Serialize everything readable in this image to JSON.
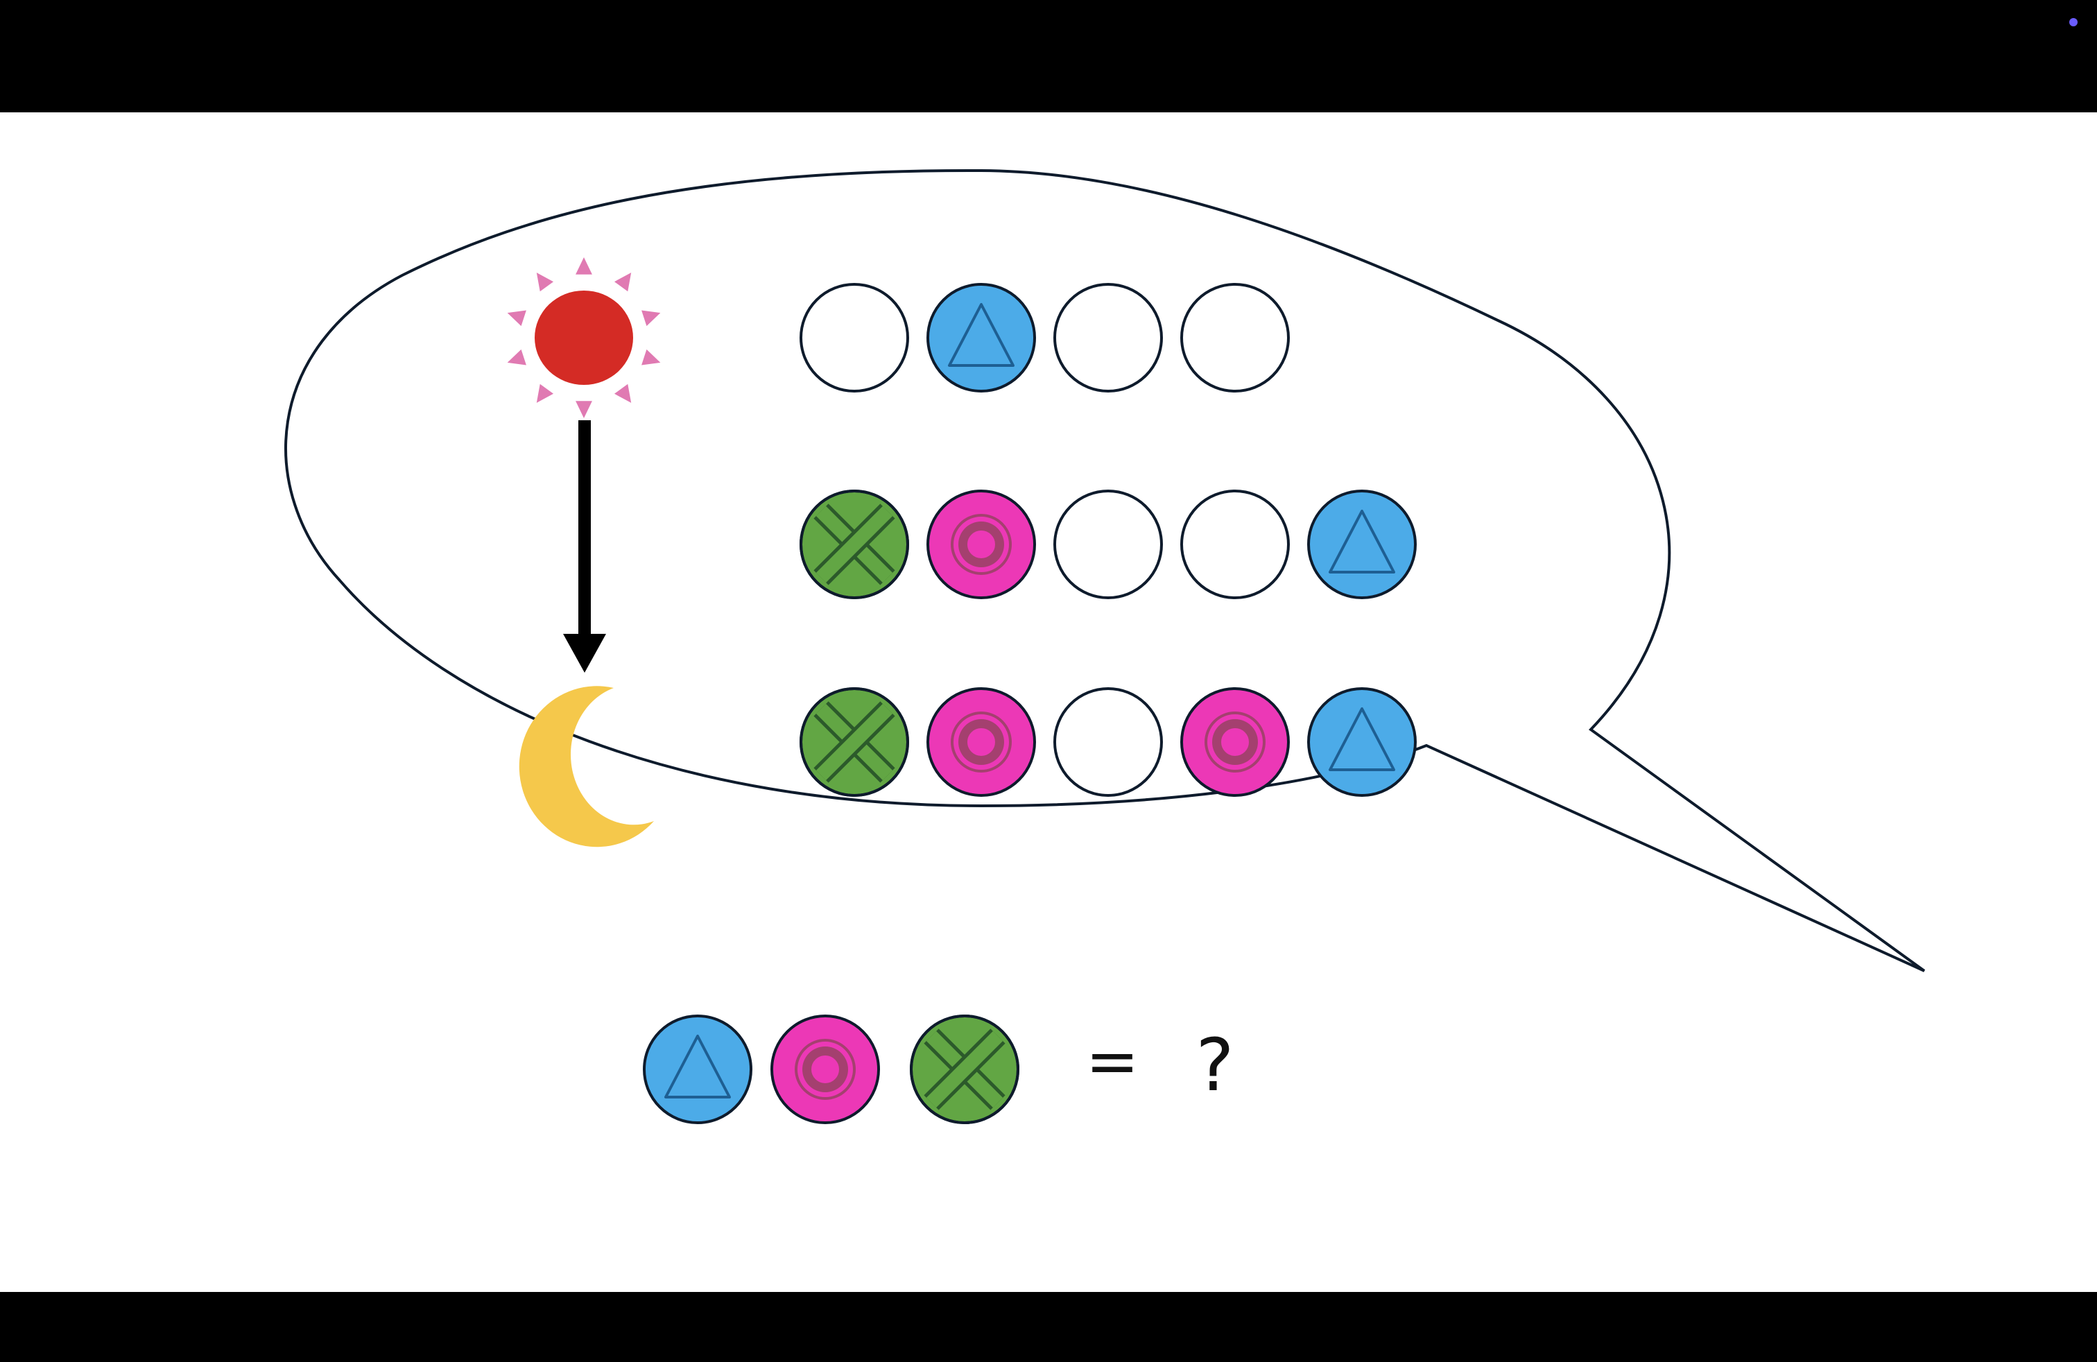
{
  "colors": {
    "letterbox": "#000000",
    "slide_background": "#ffffff",
    "status_dot": "#6a5cff",
    "outline": "#0e1b2c",
    "sun_core": "#d42b25",
    "sun_rays": "#e07ab2",
    "moon": "#f5c84b",
    "arrow": "#000000",
    "triangle_fill": "#4cabe8",
    "triangle_stroke": "#1e5f93",
    "target_fill": "#ec38b6",
    "target_stroke": "#a4406f",
    "cross_fill": "#62a644",
    "cross_stroke": "#2c5a2b",
    "empty_fill": "#ffffff"
  },
  "icons": {
    "sun": "sun-icon",
    "moon": "crescent-moon-icon",
    "arrow": "arrow-down-icon",
    "triangle": "triangle-token-icon",
    "target": "target-token-icon",
    "cross": "cross-token-icon",
    "empty": "empty-token-icon"
  },
  "puzzle": {
    "rows": [
      [
        "empty",
        "triangle",
        "empty",
        "empty"
      ],
      [
        "cross",
        "target",
        "empty",
        "empty",
        "triangle"
      ],
      [
        "cross",
        "target",
        "empty",
        "target",
        "triangle"
      ]
    ],
    "equation": {
      "tokens": [
        "triangle",
        "target",
        "cross"
      ],
      "equals": "=",
      "answer": "?"
    }
  }
}
